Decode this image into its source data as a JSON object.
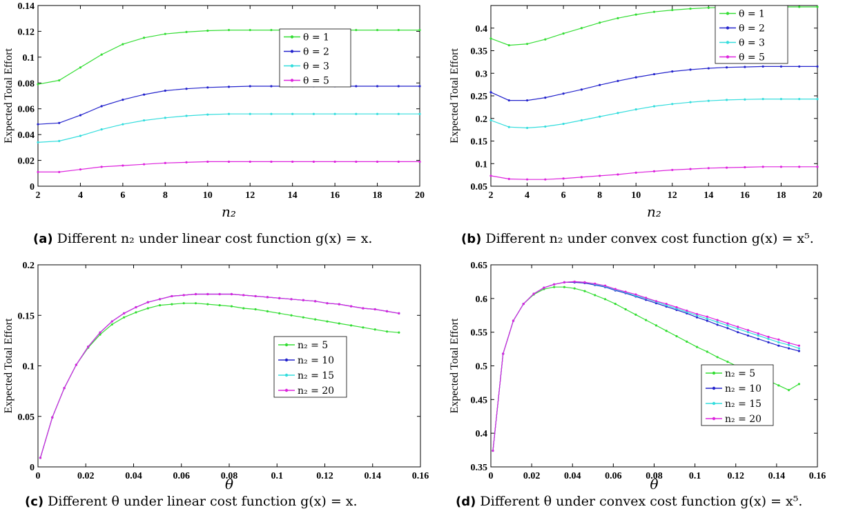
{
  "captions": [
    {
      "label": "(a)",
      "text": "Different n₂ under linear cost function g(x) = x."
    },
    {
      "label": "(b)",
      "text": "Different n₂ under convex cost function g(x) = x⁵."
    },
    {
      "label": "(c)",
      "text": "Different θ under linear cost function g(x) = x."
    },
    {
      "label": "(d)",
      "text": "Different θ under convex cost function g(x) = x⁵."
    }
  ],
  "colors": {
    "green": "#33dd33",
    "blue": "#2222cc",
    "cyan": "#33dddd",
    "magenta": "#dd22dd"
  },
  "chart_data": [
    {
      "type": "line",
      "xlabel": "n₂",
      "ylabel": "Expected Total Effort",
      "xlim": [
        2,
        20
      ],
      "ylim": [
        0,
        0.14
      ],
      "xticks": [
        "2",
        "4",
        "6",
        "8",
        "10",
        "12",
        "14",
        "16",
        "18",
        "20"
      ],
      "yticks": [
        "0",
        "0.02",
        "0.04",
        "0.06",
        "0.08",
        "0.1",
        "0.12",
        "0.14"
      ],
      "legend_position": "top-right",
      "x": [
        2,
        3,
        4,
        5,
        6,
        7,
        8,
        9,
        10,
        11,
        12,
        13,
        14,
        15,
        16,
        17,
        18,
        19,
        20
      ],
      "series": [
        {
          "name": "θ = 1",
          "color": "#33dd33",
          "values": [
            0.079,
            0.082,
            0.092,
            0.102,
            0.11,
            0.115,
            0.118,
            0.1195,
            0.1205,
            0.121,
            0.121,
            0.121,
            0.121,
            0.121,
            0.121,
            0.121,
            0.121,
            0.121,
            0.121
          ]
        },
        {
          "name": "θ = 2",
          "color": "#2222cc",
          "values": [
            0.048,
            0.049,
            0.055,
            0.062,
            0.067,
            0.071,
            0.074,
            0.0755,
            0.0765,
            0.077,
            0.0775,
            0.0775,
            0.0775,
            0.0775,
            0.0775,
            0.0775,
            0.0775,
            0.0775,
            0.0775
          ]
        },
        {
          "name": "θ = 3",
          "color": "#33dddd",
          "values": [
            0.034,
            0.035,
            0.039,
            0.044,
            0.048,
            0.051,
            0.053,
            0.0545,
            0.0555,
            0.056,
            0.056,
            0.056,
            0.056,
            0.056,
            0.056,
            0.056,
            0.056,
            0.056,
            0.056
          ]
        },
        {
          "name": "θ = 5",
          "color": "#dd22dd",
          "values": [
            0.011,
            0.011,
            0.013,
            0.015,
            0.016,
            0.017,
            0.018,
            0.0185,
            0.019,
            0.019,
            0.019,
            0.019,
            0.019,
            0.019,
            0.019,
            0.019,
            0.019,
            0.019,
            0.019
          ]
        }
      ]
    },
    {
      "type": "line",
      "xlabel": "n₂",
      "ylabel": "Expected Total Effort",
      "xlim": [
        2,
        20
      ],
      "ylim": [
        0.05,
        0.45
      ],
      "xticks": [
        "2",
        "4",
        "6",
        "8",
        "10",
        "12",
        "14",
        "16",
        "18",
        "20"
      ],
      "yticks": [
        "0.05",
        "0.1",
        "0.15",
        "0.2",
        "0.25",
        "0.3",
        "0.35",
        "0.4"
      ],
      "legend_position": "top-right",
      "x": [
        2,
        3,
        4,
        5,
        6,
        7,
        8,
        9,
        10,
        11,
        12,
        13,
        14,
        15,
        16,
        17,
        18,
        19,
        20
      ],
      "series": [
        {
          "name": "θ = 1",
          "color": "#33dd33",
          "values": [
            0.377,
            0.362,
            0.365,
            0.375,
            0.388,
            0.4,
            0.412,
            0.422,
            0.43,
            0.436,
            0.44,
            0.443,
            0.445,
            0.446,
            0.447,
            0.447,
            0.447,
            0.447,
            0.447
          ]
        },
        {
          "name": "θ = 2",
          "color": "#2222cc",
          "values": [
            0.258,
            0.24,
            0.24,
            0.246,
            0.255,
            0.264,
            0.274,
            0.283,
            0.291,
            0.298,
            0.304,
            0.308,
            0.311,
            0.313,
            0.314,
            0.315,
            0.315,
            0.315,
            0.315
          ]
        },
        {
          "name": "θ = 3",
          "color": "#33dddd",
          "values": [
            0.196,
            0.181,
            0.179,
            0.182,
            0.188,
            0.196,
            0.204,
            0.212,
            0.22,
            0.227,
            0.232,
            0.236,
            0.239,
            0.241,
            0.242,
            0.243,
            0.243,
            0.243,
            0.243
          ]
        },
        {
          "name": "θ = 5",
          "color": "#dd22dd",
          "values": [
            0.073,
            0.066,
            0.065,
            0.065,
            0.067,
            0.07,
            0.073,
            0.076,
            0.08,
            0.083,
            0.086,
            0.088,
            0.09,
            0.091,
            0.092,
            0.093,
            0.093,
            0.093,
            0.093
          ]
        }
      ]
    },
    {
      "type": "line",
      "xlabel": "θ",
      "ylabel": "Expected Total Effort",
      "xlim": [
        0,
        0.16
      ],
      "ylim": [
        0,
        0.2
      ],
      "xticks": [
        "0",
        "0.02",
        "0.04",
        "0.06",
        "0.08",
        "0.1",
        "0.12",
        "0.14",
        "0.16"
      ],
      "yticks": [
        "0",
        "0.05",
        "0.1",
        "0.15",
        "0.2"
      ],
      "legend_position": "center-right",
      "x": [
        0.001,
        0.006,
        0.011,
        0.016,
        0.021,
        0.026,
        0.031,
        0.036,
        0.041,
        0.046,
        0.051,
        0.056,
        0.061,
        0.066,
        0.071,
        0.076,
        0.081,
        0.086,
        0.091,
        0.096,
        0.101,
        0.106,
        0.111,
        0.116,
        0.121,
        0.126,
        0.131,
        0.136,
        0.141,
        0.146,
        0.151
      ],
      "series": [
        {
          "name": "n₂ = 5",
          "color": "#33dd33",
          "values": [
            0.009,
            0.049,
            0.078,
            0.101,
            0.118,
            0.131,
            0.141,
            0.148,
            0.153,
            0.157,
            0.16,
            0.161,
            0.162,
            0.162,
            0.161,
            0.16,
            0.159,
            0.157,
            0.156,
            0.154,
            0.152,
            0.15,
            0.148,
            0.146,
            0.144,
            0.142,
            0.14,
            0.138,
            0.136,
            0.134,
            0.133
          ]
        },
        {
          "name": "n₂ = 10",
          "color": "#2222cc",
          "values": [
            0.009,
            0.049,
            0.078,
            0.101,
            0.119,
            0.133,
            0.144,
            0.152,
            0.158,
            0.163,
            0.166,
            0.169,
            0.17,
            0.171,
            0.171,
            0.171,
            0.171,
            0.17,
            0.169,
            0.168,
            0.167,
            0.166,
            0.165,
            0.164,
            0.162,
            0.161,
            0.159,
            0.157,
            0.156,
            0.154,
            0.152
          ]
        },
        {
          "name": "n₂ = 15",
          "color": "#33dddd",
          "values": [
            0.009,
            0.049,
            0.078,
            0.101,
            0.119,
            0.133,
            0.144,
            0.152,
            0.158,
            0.163,
            0.166,
            0.169,
            0.17,
            0.171,
            0.171,
            0.171,
            0.171,
            0.17,
            0.169,
            0.168,
            0.167,
            0.166,
            0.165,
            0.164,
            0.162,
            0.161,
            0.159,
            0.157,
            0.156,
            0.154,
            0.152
          ]
        },
        {
          "name": "n₂ = 20",
          "color": "#dd22dd",
          "values": [
            0.009,
            0.049,
            0.078,
            0.101,
            0.119,
            0.133,
            0.144,
            0.152,
            0.158,
            0.163,
            0.166,
            0.169,
            0.17,
            0.171,
            0.171,
            0.171,
            0.171,
            0.17,
            0.169,
            0.168,
            0.167,
            0.166,
            0.165,
            0.164,
            0.162,
            0.161,
            0.159,
            0.157,
            0.156,
            0.154,
            0.152
          ]
        }
      ]
    },
    {
      "type": "line",
      "xlabel": "θ",
      "ylabel": "Expected Total Effort",
      "xlim": [
        0,
        0.16
      ],
      "ylim": [
        0.35,
        0.65
      ],
      "xticks": [
        "0",
        "0.02",
        "0.04",
        "0.06",
        "0.08",
        "0.1",
        "0.12",
        "0.14",
        "0.16"
      ],
      "yticks": [
        "0.35",
        "0.4",
        "0.45",
        "0.5",
        "0.55",
        "0.6",
        "0.65"
      ],
      "legend_position": "bottom-right",
      "x": [
        0.001,
        0.006,
        0.011,
        0.016,
        0.021,
        0.026,
        0.031,
        0.036,
        0.041,
        0.046,
        0.051,
        0.056,
        0.061,
        0.066,
        0.071,
        0.076,
        0.081,
        0.086,
        0.091,
        0.096,
        0.101,
        0.106,
        0.111,
        0.116,
        0.121,
        0.126,
        0.131,
        0.136,
        0.141,
        0.146,
        0.151
      ],
      "series": [
        {
          "name": "n₂ = 5",
          "color": "#33dd33",
          "values": [
            0.374,
            0.518,
            0.567,
            0.592,
            0.606,
            0.614,
            0.617,
            0.617,
            0.615,
            0.611,
            0.605,
            0.599,
            0.592,
            0.584,
            0.576,
            0.568,
            0.56,
            0.552,
            0.544,
            0.536,
            0.528,
            0.521,
            0.513,
            0.506,
            0.499,
            0.492,
            0.485,
            0.478,
            0.471,
            0.464,
            0.473
          ]
        },
        {
          "name": "n₂ = 10",
          "color": "#2222cc",
          "values": [
            0.374,
            0.518,
            0.567,
            0.592,
            0.607,
            0.616,
            0.621,
            0.624,
            0.624,
            0.623,
            0.62,
            0.617,
            0.612,
            0.608,
            0.603,
            0.598,
            0.593,
            0.588,
            0.583,
            0.578,
            0.572,
            0.567,
            0.561,
            0.556,
            0.55,
            0.545,
            0.54,
            0.535,
            0.53,
            0.526,
            0.522
          ]
        },
        {
          "name": "n₂ = 15",
          "color": "#33dddd",
          "values": [
            0.374,
            0.518,
            0.567,
            0.592,
            0.607,
            0.616,
            0.621,
            0.624,
            0.625,
            0.624,
            0.621,
            0.618,
            0.613,
            0.609,
            0.604,
            0.6,
            0.595,
            0.59,
            0.585,
            0.58,
            0.575,
            0.57,
            0.565,
            0.56,
            0.555,
            0.55,
            0.545,
            0.54,
            0.535,
            0.531,
            0.526
          ]
        },
        {
          "name": "n₂ = 20",
          "color": "#dd22dd",
          "values": [
            0.374,
            0.518,
            0.567,
            0.592,
            0.607,
            0.616,
            0.621,
            0.624,
            0.625,
            0.624,
            0.622,
            0.619,
            0.614,
            0.61,
            0.606,
            0.601,
            0.596,
            0.592,
            0.587,
            0.582,
            0.577,
            0.573,
            0.568,
            0.563,
            0.558,
            0.553,
            0.548,
            0.543,
            0.539,
            0.534,
            0.53
          ]
        }
      ]
    }
  ]
}
